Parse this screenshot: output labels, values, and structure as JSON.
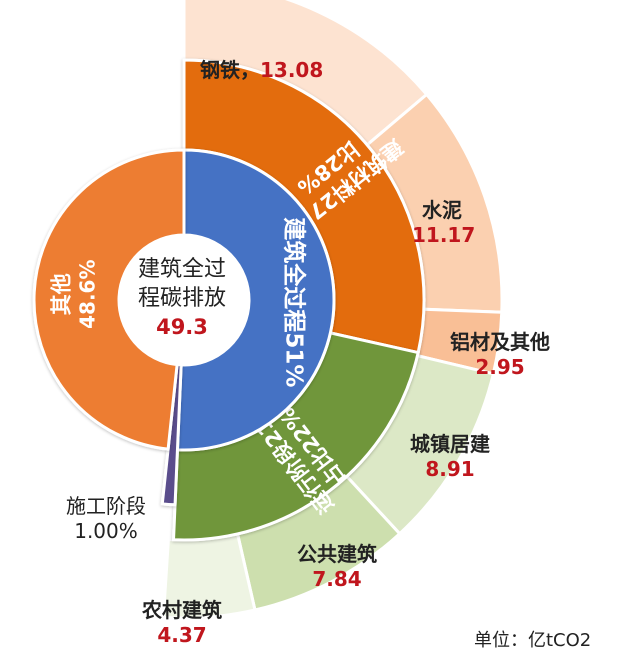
{
  "chart_data": {
    "type": "pie",
    "variant": "sunburst",
    "center": {
      "line1": "建筑全过",
      "line2": "程碳排放",
      "value": "49.3"
    },
    "inner_ring": [
      {
        "key": "full_process",
        "label": "建筑全过程51%",
        "share": 51,
        "color": "#4472c4"
      },
      {
        "key": "construction",
        "label": "施工阶段",
        "value": "1.00%",
        "share": 1,
        "color": "#5a4d8c"
      },
      {
        "key": "other",
        "label": "其他",
        "value": "48.6%",
        "share": 48.6,
        "color": "#ed7d31"
      }
    ],
    "middle_ring": [
      {
        "key": "materials",
        "line1": "建筑材料27,占",
        "line2": "比28%",
        "value": 27,
        "color": "#e36c09"
      },
      {
        "key": "operation",
        "line1": "运行阶段21,",
        "line2": "占比22%",
        "value": 21,
        "color": "#70963a"
      }
    ],
    "outer_ring": [
      {
        "key": "steel",
        "parent": "materials",
        "label": "钢铁，",
        "value": 13.08,
        "display": "13.08",
        "color": "#fde3d1"
      },
      {
        "key": "cement",
        "parent": "materials",
        "label": "水泥",
        "value": 11.17,
        "display": "11.17",
        "color": "#fbd0b0"
      },
      {
        "key": "aluminum",
        "parent": "materials",
        "label": "铝材及其他",
        "value": 2.95,
        "display": "2.95",
        "color": "#f9bf96"
      },
      {
        "key": "urban",
        "parent": "operation",
        "label": "城镇居建",
        "value": 8.91,
        "display": "8.91",
        "color": "#dce8c6"
      },
      {
        "key": "public",
        "parent": "operation",
        "label": "公共建筑",
        "value": 7.84,
        "display": "7.84",
        "color": "#cddfae"
      },
      {
        "key": "rural",
        "parent": "operation",
        "label": "农村建筑",
        "value": 4.37,
        "display": "4.37",
        "color": "#eef4e3"
      }
    ],
    "unit": "单位：亿tCO2"
  }
}
